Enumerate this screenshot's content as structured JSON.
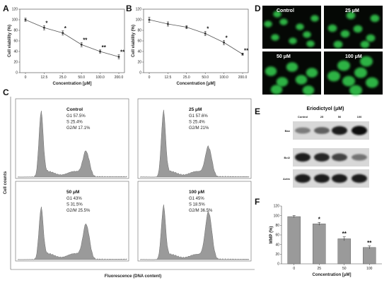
{
  "chart_data": [
    {
      "panel": "A",
      "type": "line",
      "x": [
        "0",
        "12.5",
        "25.0",
        "50.0",
        "100.0",
        "200.0"
      ],
      "values": [
        100,
        85,
        75,
        53,
        40,
        30
      ],
      "errors": [
        3,
        4,
        4,
        4,
        3,
        4
      ],
      "stars": [
        "",
        "*",
        "*",
        "**",
        "**",
        "**"
      ],
      "xlabel": "Concentration [μM]",
      "ylabel": "Cell viability (%)",
      "yticks": [
        "0",
        "20",
        "40",
        "60",
        "80",
        "100",
        "120"
      ],
      "ylim": [
        0,
        120
      ]
    },
    {
      "panel": "B",
      "type": "line",
      "x": [
        "0",
        "12.5",
        "25.0",
        "50.0",
        "100.0",
        "200.0"
      ],
      "values": [
        100,
        92,
        86,
        74,
        57,
        35
      ],
      "errors": [
        5,
        4,
        3,
        4,
        4,
        2
      ],
      "stars": [
        "",
        "",
        "",
        "*",
        "*",
        "**"
      ],
      "xlabel": "Concentration [μM]",
      "ylabel": "Cell viability (%)",
      "yticks": [
        "0",
        "20",
        "40",
        "60",
        "80",
        "100",
        "120"
      ],
      "ylim": [
        0,
        120
      ]
    },
    {
      "panel": "C",
      "type": "histogram",
      "ylabel": "Cell counts",
      "xlabel": "Fluorescence (DNA content)",
      "subplots": [
        {
          "title": "Control",
          "lines": [
            "G1 57.5%",
            "S 25.4%",
            "G2/M 17.1%"
          ],
          "g1": 57.5,
          "s": 25.4,
          "g2m": 17.1
        },
        {
          "title": "25 μM",
          "lines": [
            "G1 57.6%",
            "S 25.4%",
            "G2/M 21%"
          ],
          "g1": 57.6,
          "s": 25.4,
          "g2m": 21
        },
        {
          "title": "50 μM",
          "lines": [
            "G1 43%",
            "S 31.5%",
            "G2/M 25.5%"
          ],
          "g1": 43,
          "s": 31.5,
          "g2m": 25.5
        },
        {
          "title": "100 μM",
          "lines": [
            "G1 45%",
            "S 18.5%",
            "G2/M 36.5%"
          ],
          "g1": 45,
          "s": 18.5,
          "g2m": 36.5
        }
      ]
    },
    {
      "panel": "D",
      "type": "micrograph",
      "labels": [
        "Control",
        "25 μM",
        "50 μM",
        "100 μM"
      ],
      "colors": {
        "background": "#050805",
        "nucleus": "#35d050"
      }
    },
    {
      "panel": "E",
      "type": "western-blot",
      "title": "Eriodictyol (μM)",
      "lanes": [
        "Control",
        "25",
        "50",
        "100"
      ],
      "proteins": [
        {
          "name": "Bax",
          "intensity": [
            0.4,
            0.55,
            0.9,
            1.0
          ]
        },
        {
          "name": "Bcl2",
          "intensity": [
            0.9,
            0.85,
            0.7,
            0.45
          ]
        },
        {
          "name": "Actin",
          "intensity": [
            0.9,
            0.9,
            0.9,
            0.9
          ]
        }
      ]
    },
    {
      "panel": "F",
      "type": "bar",
      "categories": [
        "0",
        "25",
        "50",
        "100"
      ],
      "values": [
        98,
        83,
        52,
        34
      ],
      "errors": [
        2,
        3,
        4,
        3
      ],
      "stars": [
        "",
        "*",
        "**",
        "**"
      ],
      "xlabel": "Concentration [μM]",
      "ylabel": "MMP (%)",
      "yticks": [
        "0",
        "20",
        "40",
        "60",
        "80",
        "100",
        "120"
      ],
      "ylim": [
        0,
        120
      ],
      "colors": {
        "bar": "#9a9a9a"
      }
    }
  ]
}
